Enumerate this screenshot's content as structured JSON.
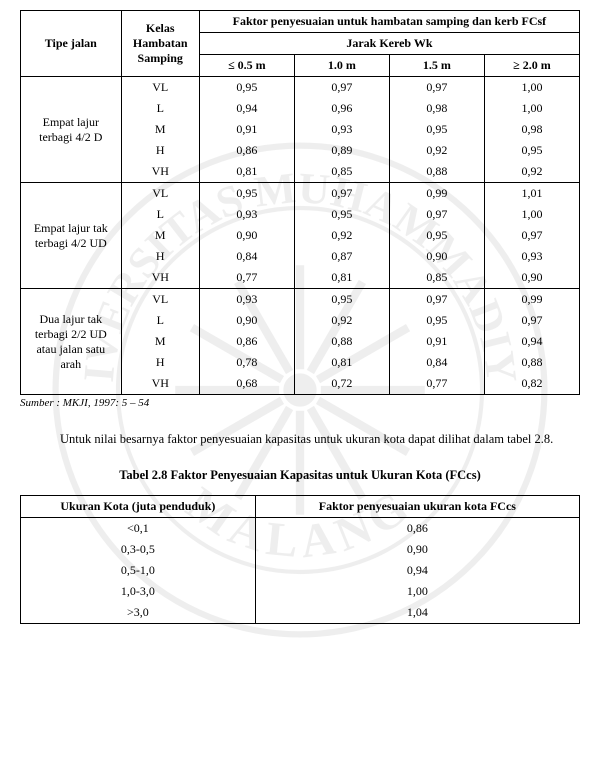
{
  "table1": {
    "headers": {
      "tipe": "Tipe jalan",
      "kelas": "Kelas Hambatan Samping",
      "faktor": "Faktor penyesuaian untuk hambatan samping dan kerb FCsf",
      "jarak": "Jarak Kereb Wk",
      "cols": [
        "≤ 0.5 m",
        "1.0 m",
        "1.5 m",
        "≥ 2.0 m"
      ]
    },
    "groups": [
      {
        "label": "Empat lajur terbagi 4/2 D",
        "rows": [
          [
            "VL",
            "0,95",
            "0,97",
            "0,97",
            "1,00"
          ],
          [
            "L",
            "0,94",
            "0,96",
            "0,98",
            "1,00"
          ],
          [
            "M",
            "0,91",
            "0,93",
            "0,95",
            "0,98"
          ],
          [
            "H",
            "0,86",
            "0,89",
            "0,92",
            "0,95"
          ],
          [
            "VH",
            "0,81",
            "0,85",
            "0,88",
            "0,92"
          ]
        ]
      },
      {
        "label": "Empat lajur tak terbagi 4/2 UD",
        "rows": [
          [
            "VL",
            "0,95",
            "0,97",
            "0,99",
            "1,01"
          ],
          [
            "L",
            "0,93",
            "0,95",
            "0,97",
            "1,00"
          ],
          [
            "M",
            "0,90",
            "0,92",
            "0,95",
            "0,97"
          ],
          [
            "H",
            "0,84",
            "0,87",
            "0,90",
            "0,93"
          ],
          [
            "VH",
            "0,77",
            "0,81",
            "0,85",
            "0,90"
          ]
        ]
      },
      {
        "label": "Dua lajur tak terbagi 2/2 UD atau jalan satu arah",
        "rows": [
          [
            "VL",
            "0,93",
            "0,95",
            "0,97",
            "0,99"
          ],
          [
            "L",
            "0,90",
            "0,92",
            "0,95",
            "0,97"
          ],
          [
            "M",
            "0,86",
            "0,88",
            "0,91",
            "0,94"
          ],
          [
            "H",
            "0,78",
            "0,81",
            "0,84",
            "0,88"
          ],
          [
            "VH",
            "0,68",
            "0,72",
            "0,77",
            "0,82"
          ]
        ]
      }
    ]
  },
  "source": "Sumber : MKJI, 1997: 5 – 54",
  "paragraph": "Untuk nilai besarnya faktor penyesuaian kapasitas untuk ukuran kota dapat dilihat dalam tabel 2.8.",
  "caption2": "Tabel 2.8 Faktor Penyesuaian Kapasitas untuk Ukuran Kota (FCcs)",
  "table2": {
    "headers": [
      "Ukuran Kota (juta penduduk)",
      "Faktor penyesuaian ukuran kota FCcs"
    ],
    "rows": [
      [
        "<0,1",
        "0,86"
      ],
      [
        "0,3-0,5",
        "0,90"
      ],
      [
        "0,5-1,0",
        "0,94"
      ],
      [
        "1,0-3,0",
        "1,00"
      ],
      [
        ">3,0",
        "1,04"
      ]
    ]
  },
  "style": {
    "font_family": "Times New Roman",
    "base_fontsize": 12,
    "text_color": "#000000",
    "bg_color": "#ffffff",
    "border_color": "#000000",
    "watermark_opacity": 0.1,
    "col_widths_t1": [
      "18%",
      "14%",
      "17%",
      "17%",
      "17%",
      "17%"
    ],
    "col_widths_t2": [
      "42%",
      "58%"
    ]
  }
}
